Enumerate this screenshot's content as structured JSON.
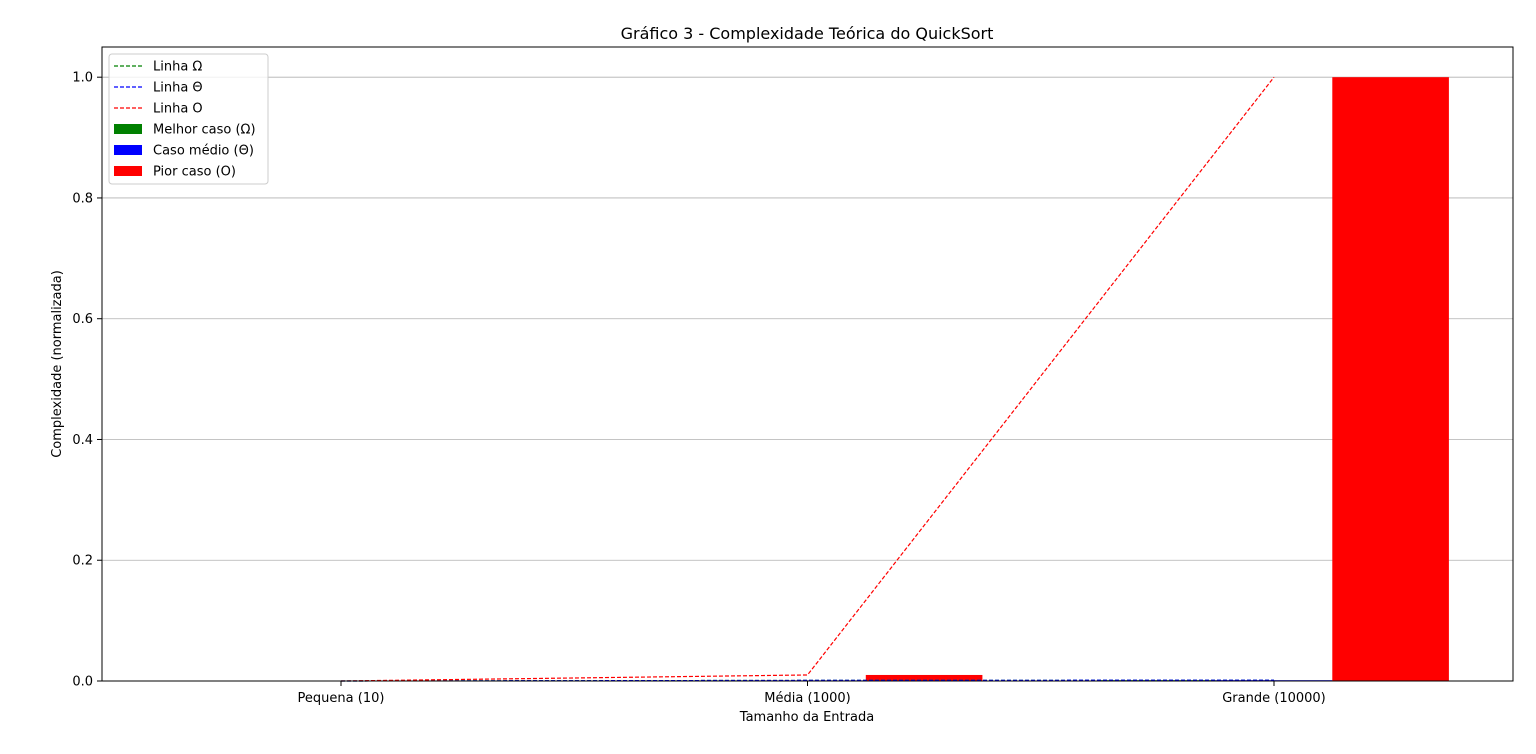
{
  "chart_data": {
    "type": "bar",
    "title": "Gráfico 3 - Complexidade Teórica do QuickSort",
    "xlabel": "Tamanho da Entrada",
    "ylabel": "Complexidade (normalizada)",
    "categories": [
      "Pequena (10)",
      "Média (1000)",
      "Grande (10000)"
    ],
    "ylim": [
      0,
      1.05
    ],
    "yticks": [
      "0.0",
      "0.2",
      "0.4",
      "0.6",
      "0.8",
      "1.0"
    ],
    "grid": "y",
    "legend_position": "top-left",
    "bar_series": [
      {
        "name": "Melhor caso (Ω)",
        "color": "#008000",
        "values": [
          3.3e-06,
          0.0009967,
          0.0013289
        ]
      },
      {
        "name": "Caso médio (Θ)",
        "color": "#0000ff",
        "values": [
          3.3e-06,
          0.0009967,
          0.0013289
        ]
      },
      {
        "name": "Pior caso (O)",
        "color": "#ff0000",
        "values": [
          1e-06,
          0.01,
          1.0
        ]
      }
    ],
    "line_series": [
      {
        "name": "Linha Ω",
        "color": "#008000",
        "style": "dashed",
        "values": [
          3.3e-06,
          0.0009967,
          0.0013289
        ]
      },
      {
        "name": "Linha Θ",
        "color": "#0000ff",
        "style": "dashed",
        "values": [
          3.3e-06,
          0.0009967,
          0.0013289
        ]
      },
      {
        "name": "Linha O",
        "color": "#ff0000",
        "style": "dashed",
        "values": [
          1e-06,
          0.01,
          1.0
        ]
      }
    ]
  }
}
